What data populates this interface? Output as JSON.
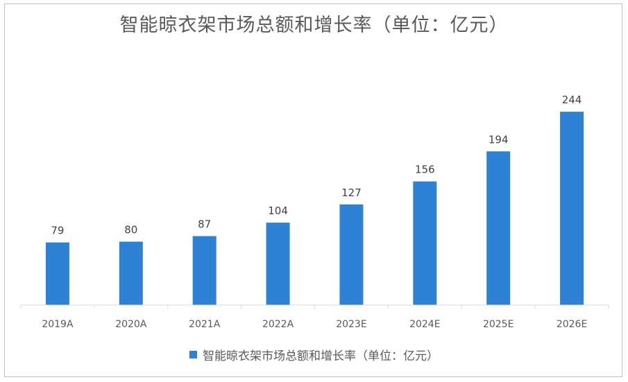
{
  "chart_data": {
    "type": "bar",
    "title": "智能晾衣架市场总额和增长率（单位：亿元）",
    "categories": [
      "2019A",
      "2020A",
      "2021A",
      "2022A",
      "2023E",
      "2024E",
      "2025E",
      "2026E"
    ],
    "series": [
      {
        "name": "智能晾衣架市场总额和增长率（单位：亿元）",
        "values": [
          79,
          80,
          87,
          104,
          127,
          156,
          194,
          244
        ]
      }
    ],
    "ylim": [
      0,
      280
    ],
    "grid": false,
    "legend": "bottom",
    "bar_color": "#2e82d6"
  }
}
